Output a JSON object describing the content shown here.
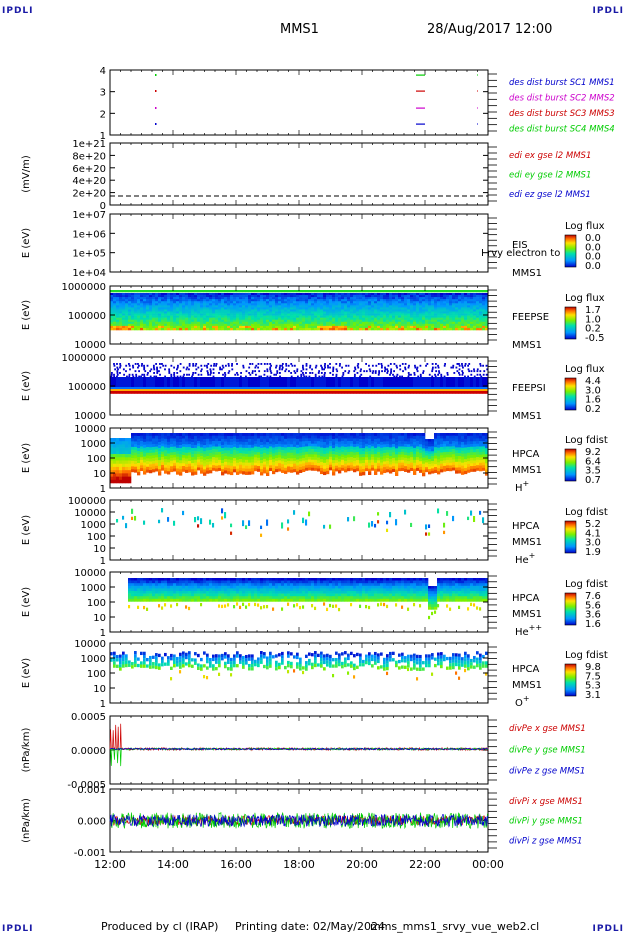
{
  "header": {
    "corner_tl": "IPDLI",
    "corner_tr": "IPDLI",
    "corner_bl": "IPDLI",
    "corner_br": "IPDLI",
    "spacecraft": "MMS1",
    "datetime": "28/Aug/2017 12:00"
  },
  "footer": {
    "produced": "Produced by cl (IRAP)",
    "printing": "Printing date: 02/May/2024",
    "script": "mms_mms1_srvy_vue_web2.cl"
  },
  "colors": {
    "mms1": "#0000cc",
    "mms2": "#cc00cc",
    "mms3": "#cc0000",
    "mms4": "#00cc00"
  },
  "chart_data": [
    {
      "id": "burst",
      "type": "scatter",
      "yticks": [
        "4",
        "3",
        "2",
        "1"
      ],
      "legend": [
        {
          "text": "des dist burst SC1 MMS1",
          "color": "#0000cc"
        },
        {
          "text": "des dist burst SC2 MMS2",
          "color": "#cc00cc"
        },
        {
          "text": "des dist burst SC3 MMS3",
          "color": "#cc0000"
        },
        {
          "text": "des dist burst SC4 MMS4",
          "color": "#00cc00"
        }
      ]
    },
    {
      "id": "edi",
      "type": "line",
      "ylabel": "(mV/m)",
      "yticks": [
        "1e+21",
        "8e+20",
        "6e+20",
        "4e+20",
        "2e+20",
        "0"
      ],
      "legend": [
        {
          "text": "edi ex gse l2 MMS1",
          "color": "#cc0000"
        },
        {
          "text": "edi ey gse l2 MMS1",
          "color": "#00cc00"
        },
        {
          "text": "edi ez gse l2 MMS1",
          "color": "#0000cc"
        }
      ]
    },
    {
      "id": "eis",
      "type": "heatmap",
      "ylabel": "E (eV)",
      "yticks": [
        "1e+07",
        "1e+06",
        "1e+05",
        "1e+04"
      ],
      "instrument": "EIS",
      "overlay": "I  rvy electron to",
      "spacecraft": "MMS1",
      "cbar_title": "Log flux",
      "cbar_ticks": [
        "0.0",
        "0.0",
        "0.0",
        "0.0"
      ]
    },
    {
      "id": "feepse",
      "type": "heatmap",
      "ylabel": "E (eV)",
      "yticks": [
        "1000000",
        "100000",
        "10000"
      ],
      "instrument": "FEEPSE",
      "spacecraft": "MMS1",
      "cbar_title": "Log flux",
      "cbar_ticks": [
        "1.7",
        "1.0",
        "0.2",
        "-0.5"
      ]
    },
    {
      "id": "feepsi",
      "type": "heatmap",
      "ylabel": "E (eV)",
      "yticks": [
        "1000000",
        "100000",
        "10000"
      ],
      "instrument": "FEEPSI",
      "spacecraft": "MMS1",
      "cbar_title": "Log flux",
      "cbar_ticks": [
        "4.4",
        "3.0",
        "1.6",
        "0.2"
      ]
    },
    {
      "id": "hpca_h",
      "type": "heatmap",
      "ylabel": "E (eV)",
      "yticks": [
        "10000",
        "1000",
        "100",
        "10",
        "1"
      ],
      "instrument": "HPCA",
      "spacecraft": "MMS1",
      "species": "H",
      "charge": "+",
      "cbar_title": "Log fdist",
      "cbar_ticks": [
        "9.2",
        "6.4",
        "3.5",
        "0.7"
      ]
    },
    {
      "id": "hpca_he",
      "type": "heatmap",
      "ylabel": "E (eV)",
      "yticks": [
        "100000",
        "10000",
        "1000",
        "100",
        "10",
        "1"
      ],
      "instrument": "HPCA",
      "spacecraft": "MMS1",
      "species": "He",
      "charge": "+",
      "cbar_title": "Log fdist",
      "cbar_ticks": [
        "5.2",
        "4.1",
        "3.0",
        "1.9"
      ]
    },
    {
      "id": "hpca_hepp",
      "type": "heatmap",
      "ylabel": "E (eV)",
      "yticks": [
        "10000",
        "1000",
        "100",
        "10",
        "1"
      ],
      "instrument": "HPCA",
      "spacecraft": "MMS1",
      "species": "He",
      "charge": "++",
      "cbar_title": "Log fdist",
      "cbar_ticks": [
        "7.6",
        "5.6",
        "3.6",
        "1.6"
      ]
    },
    {
      "id": "hpca_o",
      "type": "heatmap",
      "ylabel": "E (eV)",
      "yticks": [
        "10000",
        "1000",
        "100",
        "10",
        "1"
      ],
      "instrument": "HPCA",
      "spacecraft": "MMS1",
      "species": "O",
      "charge": "+",
      "cbar_title": "Log fdist",
      "cbar_ticks": [
        "9.8",
        "7.5",
        "5.3",
        "3.1"
      ]
    },
    {
      "id": "divpe",
      "type": "line",
      "ylabel": "(nPa/km)",
      "yticks": [
        "0.0005",
        "0.0000",
        "-0.0005"
      ],
      "legend": [
        {
          "text": "divPe x gse MMS1",
          "color": "#cc0000"
        },
        {
          "text": "divPe y gse MMS1",
          "color": "#00cc00"
        },
        {
          "text": "divPe z gse MMS1",
          "color": "#0000cc"
        }
      ]
    },
    {
      "id": "divpi",
      "type": "line",
      "ylabel": "(nPa/km)",
      "yticks": [
        "0.001",
        "0.000",
        "-0.001"
      ],
      "legend": [
        {
          "text": "divPi x gse MMS1",
          "color": "#cc0000"
        },
        {
          "text": "divPi y gse MMS1",
          "color": "#00cc00"
        },
        {
          "text": "divPi z gse MMS1",
          "color": "#0000cc"
        }
      ]
    }
  ],
  "xaxis": {
    "ticks": [
      "12:00",
      "14:00",
      "16:00",
      "18:00",
      "20:00",
      "22:00",
      "00:00"
    ]
  }
}
